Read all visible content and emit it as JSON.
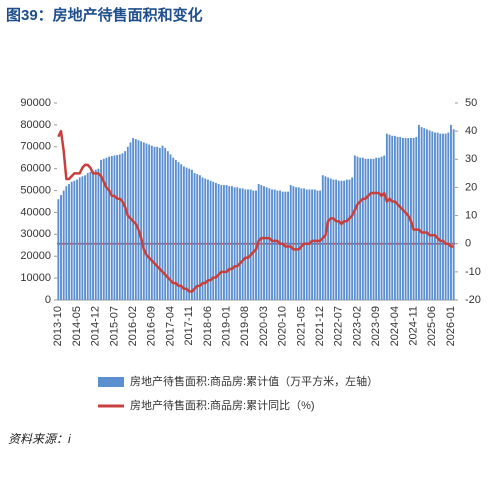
{
  "chart_data": {
    "type": "bar",
    "title": "图39：房地产待售面积和变化",
    "source": "资料来源：i",
    "categories": [
      "2013-10",
      null,
      null,
      null,
      null,
      null,
      null,
      "2014-05",
      null,
      null,
      null,
      null,
      null,
      null,
      "2014-12",
      null,
      null,
      null,
      null,
      null,
      null,
      "2015-07",
      null,
      null,
      null,
      null,
      null,
      null,
      "2016-02",
      null,
      null,
      null,
      null,
      null,
      null,
      "2016-09",
      null,
      null,
      null,
      null,
      null,
      null,
      "2017-04",
      null,
      null,
      null,
      null,
      null,
      null,
      "2017-11",
      null,
      null,
      null,
      null,
      null,
      null,
      "2018-06",
      null,
      null,
      null,
      null,
      null,
      null,
      "2019-01",
      null,
      null,
      null,
      null,
      null,
      null,
      "2019-08",
      null,
      null,
      null,
      null,
      null,
      null,
      "2020-03",
      null,
      null,
      null,
      null,
      null,
      null,
      "2020-10",
      null,
      null,
      null,
      null,
      null,
      null,
      "2021-05",
      null,
      null,
      null,
      null,
      null,
      null,
      "2021-12",
      null,
      null,
      null,
      null,
      null,
      null,
      "2022-07",
      null,
      null,
      null,
      null,
      null,
      null,
      "2023-02",
      null,
      null,
      null,
      null,
      null,
      null,
      "2023-09",
      null,
      null,
      null,
      null,
      null,
      null,
      "2024-04",
      null,
      null,
      null,
      null,
      null,
      null,
      "2024-11",
      null,
      null,
      null,
      null,
      null,
      null,
      "2025-06",
      null,
      null,
      null,
      null,
      null,
      null,
      "2026-01",
      null
    ],
    "series": [
      {
        "name": "房地产待售面积:商品房:累计值（万平方米，左轴）",
        "type": "bar",
        "color": "#5b8fd0",
        "values": [
          46000,
          48000,
          50000,
          52000,
          53000,
          54000,
          54500,
          55000,
          56000,
          56500,
          57000,
          58000,
          58500,
          59000,
          59500,
          60000,
          64000,
          64500,
          65000,
          65500,
          65800,
          66000,
          66200,
          66500,
          67000,
          68000,
          70000,
          72000,
          74000,
          73500,
          73000,
          72500,
          72000,
          71500,
          71000,
          70500,
          70000,
          70000,
          69500,
          70500,
          69500,
          68000,
          66500,
          65000,
          64000,
          63000,
          62000,
          61000,
          60500,
          60000,
          59500,
          58000,
          57500,
          57000,
          56000,
          55500,
          55000,
          54500,
          54000,
          53500,
          53000,
          52500,
          52500,
          52500,
          52000,
          52000,
          51500,
          51500,
          51000,
          51000,
          50500,
          50500,
          50500,
          50000,
          50000,
          53000,
          52500,
          52000,
          51500,
          51000,
          50500,
          50500,
          50000,
          50000,
          49500,
          49500,
          49500,
          52500,
          52000,
          51500,
          51500,
          51000,
          51000,
          50500,
          50500,
          50500,
          50500,
          50000,
          50000,
          57000,
          56500,
          56000,
          55500,
          55000,
          55000,
          54500,
          54500,
          54500,
          55000,
          55000,
          56000,
          66000,
          65500,
          65000,
          65000,
          64500,
          64500,
          64500,
          64500,
          65000,
          65000,
          65500,
          66000,
          76000,
          75500,
          75000,
          75000,
          74500,
          74500,
          74000,
          74000,
          74000,
          74000,
          74000,
          74500,
          80000,
          79000,
          78500,
          78000,
          77500,
          77000,
          76500,
          76500,
          76000,
          76000,
          76000,
          76500,
          80000,
          78000
        ]
      },
      {
        "name": "房地产待售面积:商品房:累计同比（%)",
        "type": "line",
        "axis": "y2",
        "color": "#c8403e",
        "values": [
          38,
          40,
          33,
          23,
          23,
          24,
          25,
          25,
          25,
          27,
          28,
          28,
          27,
          25,
          25,
          25,
          24,
          22,
          20,
          19,
          17,
          17,
          16,
          16,
          15,
          13,
          10,
          9,
          8,
          7,
          5,
          2,
          -2,
          -4,
          -5,
          -6,
          -7,
          -8,
          -9,
          -10,
          -11,
          -12,
          -13,
          -14,
          -14,
          -15,
          -15,
          -16,
          -16,
          -17,
          -17,
          -16,
          -15,
          -15,
          -14,
          -14,
          -13,
          -13,
          -12,
          -12,
          -11,
          -10,
          -10,
          -10,
          -9,
          -9,
          -8,
          -8,
          -7,
          -6,
          -5,
          -5,
          -4,
          -3,
          -2,
          1,
          2,
          2,
          2,
          2,
          1,
          1,
          1,
          0,
          0,
          -1,
          -1,
          -1,
          -2,
          -2,
          -2,
          -1,
          0,
          0,
          0,
          1,
          1,
          1,
          1,
          2,
          3,
          8,
          9,
          9,
          8,
          8,
          7,
          8,
          8,
          9,
          10,
          12,
          14,
          15,
          16,
          16,
          17,
          18,
          18,
          18,
          18,
          17,
          18,
          15,
          16,
          15,
          15,
          14,
          13,
          12,
          11,
          10,
          8,
          5,
          5,
          5,
          4,
          4,
          4,
          3,
          3,
          3,
          2,
          1,
          1,
          0,
          0,
          -1,
          -1
        ]
      }
    ],
    "ylim": [
      0,
      90000
    ],
    "yticks": [
      0,
      10000,
      20000,
      30000,
      40000,
      50000,
      60000,
      70000,
      80000,
      90000
    ],
    "y2lim": [
      -20,
      50
    ],
    "y2ticks": [
      -20,
      -10,
      0,
      10,
      20,
      30,
      40,
      50
    ],
    "grid": false
  }
}
